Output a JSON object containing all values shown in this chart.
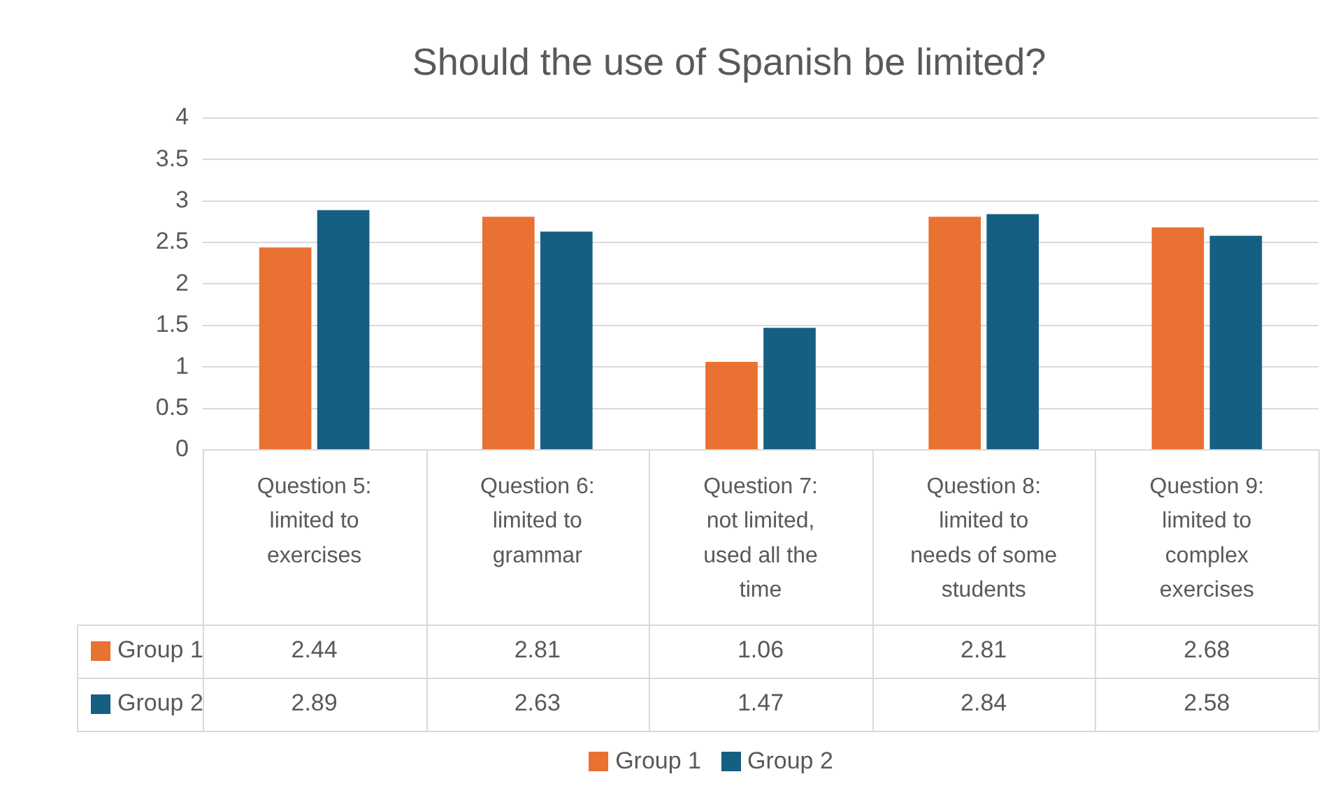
{
  "chart_data": {
    "type": "bar",
    "title": "Should the use of Spanish be limited?",
    "categories": [
      "Question 5: limited to exercises",
      "Question 6: limited to grammar",
      "Question 7: not limited, used all the time",
      "Question 8: limited to needs of some students",
      "Question 9: limited to complex exercises"
    ],
    "series": [
      {
        "name": "Group 1",
        "color": "#e97132",
        "values": [
          2.44,
          2.81,
          1.06,
          2.81,
          2.68
        ]
      },
      {
        "name": "Group 2",
        "color": "#156082",
        "values": [
          2.89,
          2.63,
          1.47,
          2.84,
          2.58
        ]
      }
    ],
    "ylim": [
      0,
      4
    ],
    "yticks": [
      0,
      0.5,
      1,
      1.5,
      2,
      2.5,
      3,
      3.5,
      4
    ],
    "grid": "y",
    "legend": "bottom",
    "data_labels": true
  }
}
